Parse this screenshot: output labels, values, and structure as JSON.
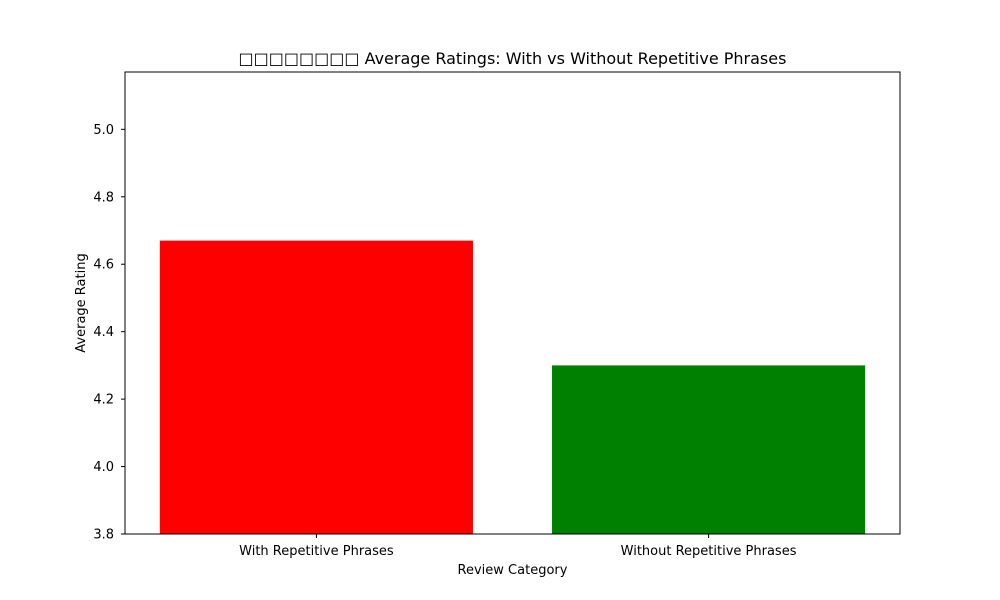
{
  "chart_data": {
    "type": "bar",
    "title": "□□□□□□□□ Average Ratings: With vs Without Repetitive Phrases",
    "xlabel": "Review Category",
    "ylabel": "Average Rating",
    "categories": [
      "With Repetitive Phrases",
      "Without Repetitive Phrases"
    ],
    "values": [
      4.67,
      4.3
    ],
    "colors": [
      "#ff0000",
      "#008000"
    ],
    "ylim": [
      3.8,
      5.17
    ],
    "yticks": [
      3.8,
      4.0,
      4.2,
      4.4,
      4.6,
      4.8,
      5.0
    ],
    "ytick_labels": [
      "3.8",
      "4.0",
      "4.2",
      "4.4",
      "4.6",
      "4.8",
      "5.0"
    ],
    "grid": false,
    "legend": "none"
  }
}
